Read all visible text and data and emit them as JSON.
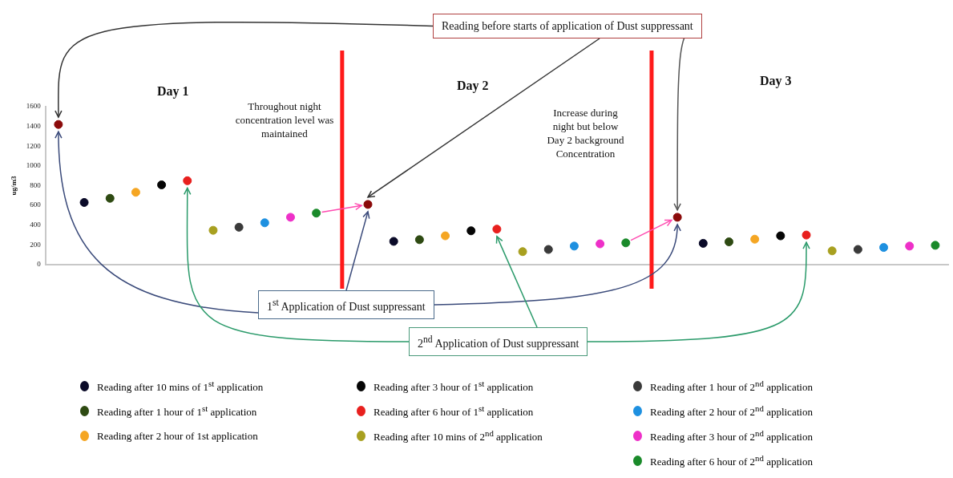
{
  "chart_data": {
    "type": "scatter",
    "ylabel": "ug/m3",
    "categories": [
      null,
      null,
      null,
      null,
      null,
      null,
      null,
      null,
      null,
      null,
      null,
      null,
      null,
      null,
      null,
      null,
      null,
      null,
      null,
      null,
      null,
      null,
      null,
      null,
      null,
      null,
      null,
      null,
      null,
      null,
      null,
      null,
      null,
      null,
      null
    ],
    "ylim": [
      0,
      1600
    ],
    "yticks": [
      0,
      200,
      400,
      600,
      800,
      1000,
      1200,
      1400,
      1600
    ],
    "tick_labels": "y",
    "grid": false,
    "legend": "bottom",
    "marker": "circle",
    "series": [
      {
        "color": "#8b0a0a",
        "values": [
          1420,
          null,
          null,
          null,
          null,
          null,
          null,
          null,
          null,
          null,
          null,
          null,
          610,
          null,
          null,
          null,
          null,
          null,
          null,
          null,
          null,
          null,
          null,
          null,
          480,
          null,
          null,
          null,
          null,
          null,
          null,
          null,
          null,
          null,
          null
        ]
      },
      {
        "name": "Reading after 10 mins of 1$^{st}$ application",
        "color": "#0a0a28",
        "values": [
          null,
          630,
          null,
          null,
          null,
          null,
          null,
          null,
          null,
          null,
          null,
          null,
          null,
          236,
          null,
          null,
          null,
          null,
          null,
          null,
          null,
          null,
          null,
          null,
          null,
          216,
          null,
          null,
          null,
          null,
          null,
          null,
          null,
          null,
          null
        ]
      },
      {
        "name": "Reading after 1 hour of 1$^{st}$ application",
        "color": "#2e4a12",
        "values": [
          null,
          null,
          672,
          null,
          null,
          null,
          null,
          null,
          null,
          null,
          null,
          null,
          null,
          null,
          253,
          null,
          null,
          null,
          null,
          null,
          null,
          null,
          null,
          null,
          null,
          null,
          231,
          null,
          null,
          null,
          null,
          null,
          null,
          null,
          null
        ]
      },
      {
        "name": "Reading after 2 hour of 1st application",
        "color": "#f5a623",
        "values": [
          null,
          null,
          null,
          733,
          null,
          null,
          null,
          null,
          null,
          null,
          null,
          null,
          null,
          null,
          null,
          292,
          null,
          null,
          null,
          null,
          null,
          null,
          null,
          null,
          null,
          null,
          null,
          258,
          null,
          null,
          null,
          null,
          null,
          null,
          null
        ]
      },
      {
        "name": "Reading after 3 hour of 1$^{st}$ application",
        "color": "#050505",
        "values": [
          null,
          null,
          null,
          null,
          808,
          null,
          null,
          null,
          null,
          null,
          null,
          null,
          null,
          null,
          null,
          null,
          343,
          null,
          null,
          null,
          null,
          null,
          null,
          null,
          null,
          null,
          null,
          null,
          292,
          null,
          null,
          null,
          null,
          null,
          null
        ]
      },
      {
        "name": "Reading after 6 hour of 1$^{st}$ application",
        "color": "#e8201e",
        "values": [
          null,
          null,
          null,
          null,
          null,
          850,
          null,
          null,
          null,
          null,
          null,
          null,
          null,
          null,
          null,
          null,
          null,
          360,
          null,
          null,
          null,
          null,
          null,
          null,
          null,
          null,
          null,
          null,
          null,
          300,
          null,
          null,
          null,
          null,
          null
        ]
      },
      {
        "name": "Reading after 10 mins of 2$^{nd}$ application",
        "color": "#a8a020",
        "values": [
          null,
          null,
          null,
          null,
          null,
          null,
          348,
          null,
          null,
          null,
          null,
          null,
          null,
          null,
          null,
          null,
          null,
          null,
          132,
          null,
          null,
          null,
          null,
          null,
          null,
          null,
          null,
          null,
          null,
          null,
          140,
          null,
          null,
          null,
          null
        ]
      },
      {
        "name": "Reading after 1 hour of 2$^{nd}$ application",
        "color": "#3a3a3a",
        "values": [
          null,
          null,
          null,
          null,
          null,
          null,
          null,
          379,
          null,
          null,
          null,
          null,
          null,
          null,
          null,
          null,
          null,
          null,
          null,
          154,
          null,
          null,
          null,
          null,
          null,
          null,
          null,
          null,
          null,
          null,
          null,
          154,
          null,
          null,
          null
        ]
      },
      {
        "name": "Reading after 2 hour of 2$^{nd}$ application",
        "color": "#1e90e0",
        "values": [
          null,
          null,
          null,
          null,
          null,
          null,
          null,
          null,
          424,
          null,
          null,
          null,
          null,
          null,
          null,
          null,
          null,
          null,
          null,
          null,
          188,
          null,
          null,
          null,
          null,
          null,
          null,
          null,
          null,
          null,
          null,
          null,
          174,
          null,
          null
        ]
      },
      {
        "name": "Reading after 3 hour of 2$^{nd}$ application",
        "color": "#ee30c8",
        "values": [
          null,
          null,
          null,
          null,
          null,
          null,
          null,
          null,
          null,
          480,
          null,
          null,
          null,
          null,
          null,
          null,
          null,
          null,
          null,
          null,
          null,
          211,
          null,
          null,
          null,
          null,
          null,
          null,
          null,
          null,
          null,
          null,
          null,
          188,
          null
        ]
      },
      {
        "name": "Reading after 6 hour of 2$^{nd}$ application",
        "color": "#1a8a2a",
        "values": [
          null,
          null,
          null,
          null,
          null,
          null,
          null,
          null,
          null,
          null,
          522,
          null,
          null,
          null,
          null,
          null,
          null,
          null,
          null,
          null,
          null,
          null,
          221,
          null,
          null,
          null,
          null,
          null,
          null,
          null,
          null,
          null,
          null,
          null,
          196
        ]
      }
    ],
    "ref_lines": [
      {
        "axis": "x",
        "color": "#ff1a1a"
      },
      {
        "axis": "x",
        "color": "#ff1a1a"
      }
    ],
    "annotations": [
      "Reading before starts of application of Dust suppressant",
      "Day 1",
      "Day 2",
      "Day 3",
      "Throughout night concentration level was maintained",
      "Increase during night but below Day 2 background Concentration",
      "1$^{st}$ Application of Dust suppressant",
      "2$^{nd}$ Application of Dust suppressant"
    ]
  }
}
